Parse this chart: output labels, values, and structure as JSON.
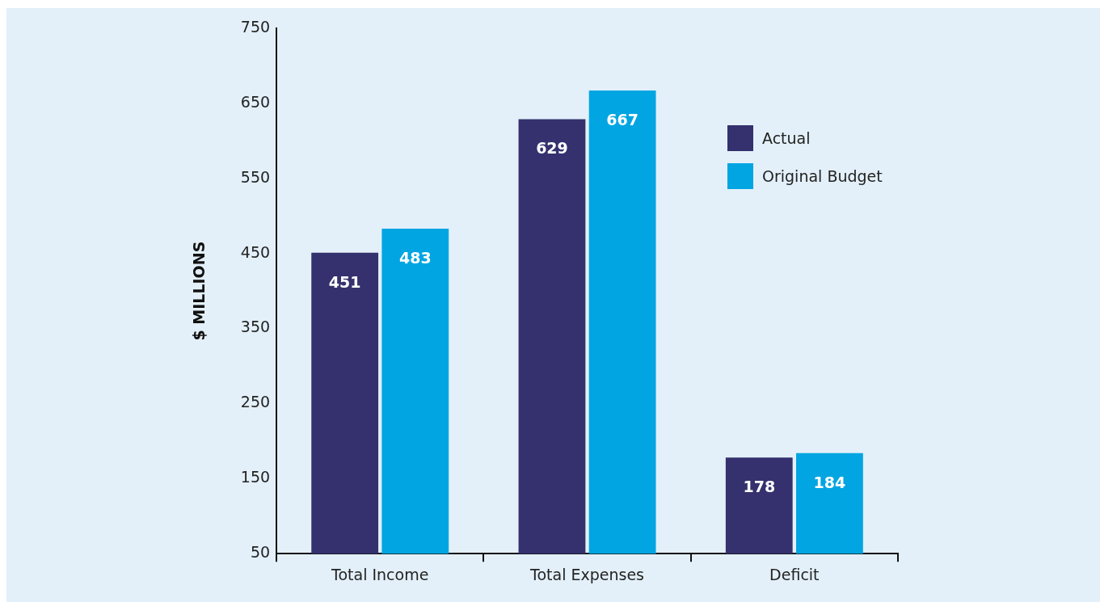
{
  "chart_data": {
    "type": "bar",
    "ylabel": "$ MILLIONS",
    "categories": [
      "Total Income",
      "Total Expenses",
      "Deficit"
    ],
    "series": [
      {
        "name": "Actual",
        "color": "#34316e",
        "values": [
          451,
          629,
          178
        ]
      },
      {
        "name": "Original Budget",
        "color": "#00a5e2",
        "values": [
          483,
          667,
          184
        ]
      }
    ],
    "ylim": [
      50,
      750
    ],
    "yticks": [
      50,
      150,
      250,
      350,
      450,
      550,
      650,
      750
    ],
    "grid": false,
    "legend": "top right",
    "data_labels": true
  }
}
